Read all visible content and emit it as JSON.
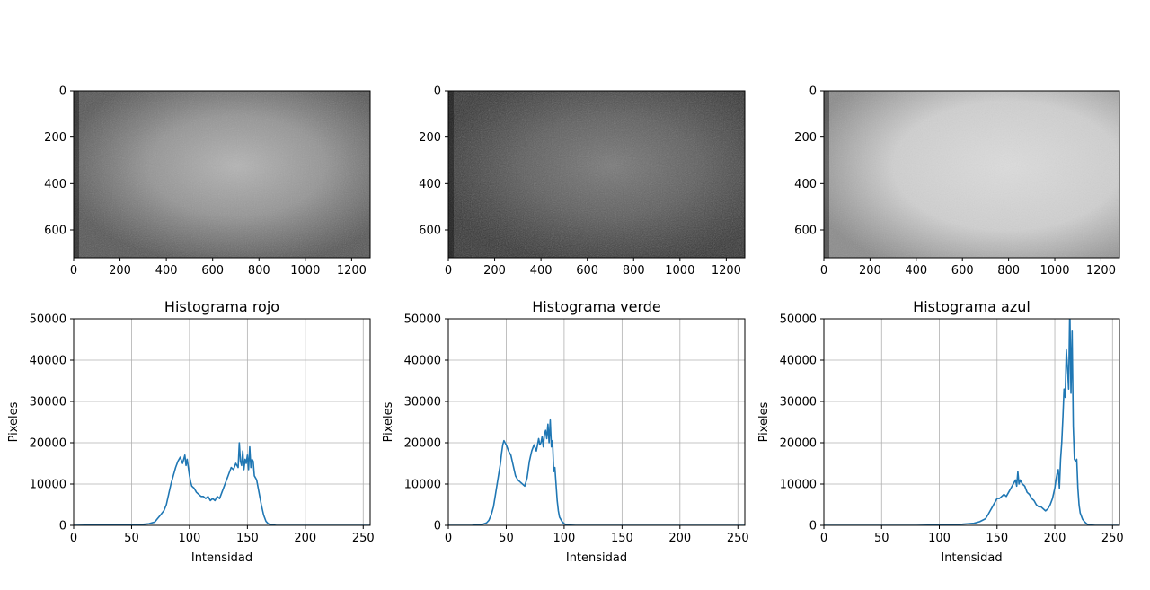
{
  "figure": {
    "images": [
      {
        "channel": "red",
        "xticks": [
          "0",
          "200",
          "400",
          "600",
          "800",
          "1000",
          "1200"
        ],
        "yticks": [
          "0",
          "200",
          "400",
          "600"
        ],
        "xlim": [
          0,
          1280
        ],
        "ylim": [
          720,
          0
        ]
      },
      {
        "channel": "green",
        "xticks": [
          "0",
          "200",
          "400",
          "600",
          "800",
          "1000",
          "1200"
        ],
        "yticks": [
          "0",
          "200",
          "400",
          "600"
        ],
        "xlim": [
          0,
          1280
        ],
        "ylim": [
          720,
          0
        ]
      },
      {
        "channel": "blue",
        "xticks": [
          "0",
          "200",
          "400",
          "600",
          "800",
          "1000",
          "1200"
        ],
        "yticks": [
          "0",
          "200",
          "400",
          "600"
        ],
        "xlim": [
          0,
          1280
        ],
        "ylim": [
          720,
          0
        ]
      }
    ]
  },
  "chart_data": [
    {
      "type": "line",
      "title": "Histograma rojo",
      "xlabel": "Intensidad",
      "ylabel": "Pixeles",
      "xlim": [
        0,
        256
      ],
      "ylim": [
        0,
        50000
      ],
      "xticks": [
        "0",
        "50",
        "100",
        "150",
        "200",
        "250"
      ],
      "yticks": [
        "0",
        "10000",
        "20000",
        "30000",
        "40000",
        "50000"
      ],
      "grid": true,
      "color": "#1f77b4",
      "x": [
        0,
        30,
        50,
        60,
        65,
        70,
        72,
        75,
        78,
        80,
        82,
        84,
        86,
        88,
        90,
        92,
        94,
        96,
        97,
        98,
        99,
        100,
        101,
        102,
        104,
        106,
        108,
        110,
        112,
        114,
        116,
        118,
        120,
        122,
        124,
        126,
        128,
        130,
        132,
        134,
        136,
        138,
        140,
        142,
        143,
        144,
        145,
        146,
        147,
        148,
        149,
        150,
        151,
        152,
        153,
        154,
        155,
        156,
        158,
        160,
        162,
        164,
        166,
        168,
        170,
        172,
        175,
        180,
        200,
        256
      ],
      "y": [
        0,
        150,
        200,
        250,
        400,
        800,
        1500,
        2500,
        3600,
        5000,
        7500,
        10000,
        12000,
        14000,
        15500,
        16500,
        15000,
        17000,
        14500,
        16000,
        14000,
        12000,
        10500,
        9500,
        9000,
        8000,
        7500,
        7000,
        7000,
        6500,
        7000,
        6000,
        6500,
        6000,
        7000,
        6500,
        8000,
        9500,
        11000,
        12500,
        14000,
        13500,
        15000,
        14000,
        20000,
        15500,
        14500,
        18000,
        13500,
        16000,
        15000,
        17000,
        13500,
        19000,
        14000,
        16000,
        15500,
        12000,
        11000,
        8000,
        5000,
        2500,
        1000,
        400,
        200,
        100,
        0,
        0,
        0,
        0
      ]
    },
    {
      "type": "line",
      "title": "Histograma verde",
      "xlabel": "Intensidad",
      "ylabel": "Pixeles",
      "xlim": [
        0,
        256
      ],
      "ylim": [
        0,
        50000
      ],
      "xticks": [
        "0",
        "50",
        "100",
        "150",
        "200",
        "250"
      ],
      "yticks": [
        "0",
        "10000",
        "20000",
        "30000",
        "40000",
        "50000"
      ],
      "grid": true,
      "color": "#1f77b4",
      "x": [
        0,
        20,
        25,
        30,
        33,
        35,
        37,
        39,
        41,
        43,
        45,
        46,
        47,
        48,
        49,
        50,
        52,
        54,
        56,
        58,
        60,
        62,
        64,
        66,
        68,
        70,
        72,
        74,
        76,
        78,
        79,
        80,
        81,
        82,
        83,
        84,
        85,
        86,
        87,
        88,
        89,
        90,
        91,
        92,
        93,
        94,
        95,
        96,
        98,
        100,
        102,
        105,
        110,
        130,
        256
      ],
      "y": [
        0,
        0,
        100,
        300,
        600,
        1200,
        2500,
        4500,
        8000,
        11500,
        15000,
        17500,
        19500,
        20500,
        20000,
        19500,
        18000,
        17000,
        14500,
        12000,
        11000,
        10500,
        10000,
        9500,
        11500,
        15500,
        18000,
        19500,
        18000,
        21000,
        19500,
        20000,
        21500,
        19000,
        22000,
        23000,
        21000,
        24500,
        20000,
        25500,
        19000,
        20500,
        13000,
        14000,
        10000,
        6000,
        3500,
        2000,
        1000,
        400,
        150,
        50,
        0,
        0,
        0
      ]
    },
    {
      "type": "line",
      "title": "Histograma azul",
      "xlabel": "Intensidad",
      "ylabel": "Pixeles",
      "xlim": [
        0,
        256
      ],
      "ylim": [
        0,
        50000
      ],
      "xticks": [
        "0",
        "50",
        "100",
        "150",
        "200",
        "250"
      ],
      "yticks": [
        "0",
        "10000",
        "20000",
        "30000",
        "40000",
        "50000"
      ],
      "grid": true,
      "color": "#1f77b4",
      "x": [
        0,
        80,
        100,
        120,
        130,
        135,
        140,
        142,
        144,
        146,
        148,
        150,
        152,
        154,
        156,
        158,
        160,
        162,
        164,
        166,
        167,
        168,
        169,
        170,
        171,
        172,
        174,
        176,
        178,
        180,
        182,
        184,
        186,
        188,
        190,
        192,
        194,
        196,
        198,
        200,
        201,
        202,
        203,
        204,
        205,
        206,
        207,
        208,
        209,
        210,
        211,
        212,
        213,
        214,
        215,
        216,
        217,
        218,
        219,
        220,
        221,
        222,
        224,
        226,
        228,
        230,
        235,
        240,
        256
      ],
      "y": [
        0,
        0,
        100,
        300,
        500,
        900,
        1600,
        2500,
        3500,
        4500,
        5500,
        6500,
        6500,
        7000,
        7500,
        7000,
        8000,
        9000,
        10000,
        11000,
        9500,
        13000,
        10000,
        11000,
        10500,
        10000,
        9500,
        8000,
        7500,
        6500,
        6000,
        5000,
        4500,
        4500,
        4000,
        3500,
        4000,
        5000,
        6500,
        9000,
        11000,
        12500,
        13500,
        9000,
        16000,
        20000,
        26000,
        33000,
        31000,
        42500,
        38000,
        33000,
        53000,
        32000,
        47000,
        24000,
        16000,
        15500,
        16000,
        9000,
        5000,
        3000,
        1500,
        800,
        300,
        100,
        0,
        0,
        0
      ]
    }
  ]
}
